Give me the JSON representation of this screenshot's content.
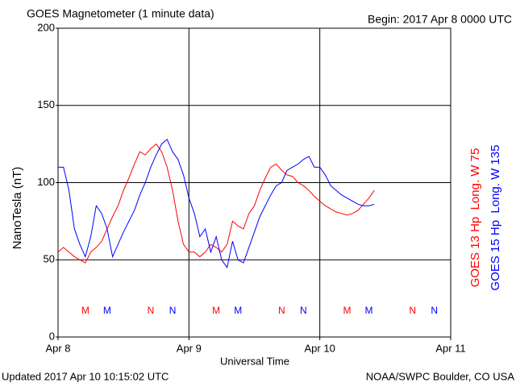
{
  "chart_data": {
    "type": "line",
    "title": "GOES Magnetometer (1 minute data)",
    "subtitle": "Begin:  2017 Apr 8 0000 UTC",
    "ylabel": "NanoTesla (nT)",
    "xlabel": "Universal Time",
    "footer_left": "Updated 2017 Apr 10 10:15:02 UTC",
    "footer_right": "NOAA/SWPC Boulder, CO USA",
    "xlim": [
      0,
      72
    ],
    "xticks": [
      {
        "value": 0,
        "label": "Apr 8"
      },
      {
        "value": 24,
        "label": "Apr 9"
      },
      {
        "value": 48,
        "label": "Apr 10"
      },
      {
        "value": 72,
        "label": "Apr 11"
      }
    ],
    "ylim": [
      0,
      200
    ],
    "yticks": [
      0,
      50,
      100,
      150,
      200
    ],
    "grid": true,
    "x": [
      0,
      1,
      2,
      3,
      4,
      5,
      6,
      7,
      8,
      9,
      10,
      11,
      12,
      13,
      14,
      15,
      16,
      17,
      18,
      19,
      20,
      21,
      22,
      23,
      24,
      25,
      26,
      27,
      28,
      29,
      30,
      31,
      32,
      33,
      34,
      35,
      36,
      37,
      38,
      39,
      40,
      41,
      42,
      43,
      44,
      45,
      46,
      47,
      48,
      49,
      50,
      51,
      52,
      53,
      54,
      55,
      56,
      57,
      58
    ],
    "series": [
      {
        "name": "GOES 13 Hp  Long. W 75",
        "color": "#ff0000",
        "values": [
          55,
          58,
          55,
          52,
          50,
          48,
          55,
          58,
          62,
          70,
          78,
          85,
          95,
          103,
          112,
          120,
          118,
          122,
          125,
          120,
          110,
          95,
          75,
          60,
          55,
          55,
          52,
          55,
          60,
          58,
          55,
          60,
          75,
          72,
          70,
          80,
          85,
          95,
          103,
          110,
          112,
          108,
          105,
          104,
          100,
          98,
          95,
          91,
          88,
          85,
          83,
          81,
          80,
          79,
          80,
          82,
          86,
          90,
          95
        ]
      },
      {
        "name": "GOES 15 Hp  Long. W 135",
        "color": "#0000ff",
        "values": [
          110,
          110,
          95,
          70,
          60,
          52,
          65,
          85,
          80,
          70,
          52,
          60,
          68,
          75,
          82,
          92,
          100,
          110,
          118,
          125,
          128,
          120,
          115,
          105,
          90,
          80,
          65,
          70,
          55,
          65,
          50,
          45,
          62,
          50,
          48,
          58,
          68,
          78,
          85,
          92,
          98,
          100,
          108,
          110,
          112,
          115,
          117,
          110,
          110,
          105,
          98,
          95,
          92,
          90,
          88,
          86,
          85,
          85,
          86
        ]
      }
    ],
    "markers": [
      {
        "label": "M",
        "x": 5,
        "color": "#ff0000"
      },
      {
        "label": "M",
        "x": 9,
        "color": "#0000ff"
      },
      {
        "label": "N",
        "x": 17,
        "color": "#ff0000"
      },
      {
        "label": "N",
        "x": 21,
        "color": "#0000ff"
      },
      {
        "label": "M",
        "x": 29,
        "color": "#ff0000"
      },
      {
        "label": "M",
        "x": 33,
        "color": "#0000ff"
      },
      {
        "label": "N",
        "x": 41,
        "color": "#ff0000"
      },
      {
        "label": "N",
        "x": 45,
        "color": "#0000ff"
      },
      {
        "label": "M",
        "x": 53,
        "color": "#ff0000"
      },
      {
        "label": "M",
        "x": 57,
        "color": "#0000ff"
      },
      {
        "label": "N",
        "x": 65,
        "color": "#ff0000"
      },
      {
        "label": "N",
        "x": 69,
        "color": "#0000ff"
      }
    ]
  }
}
